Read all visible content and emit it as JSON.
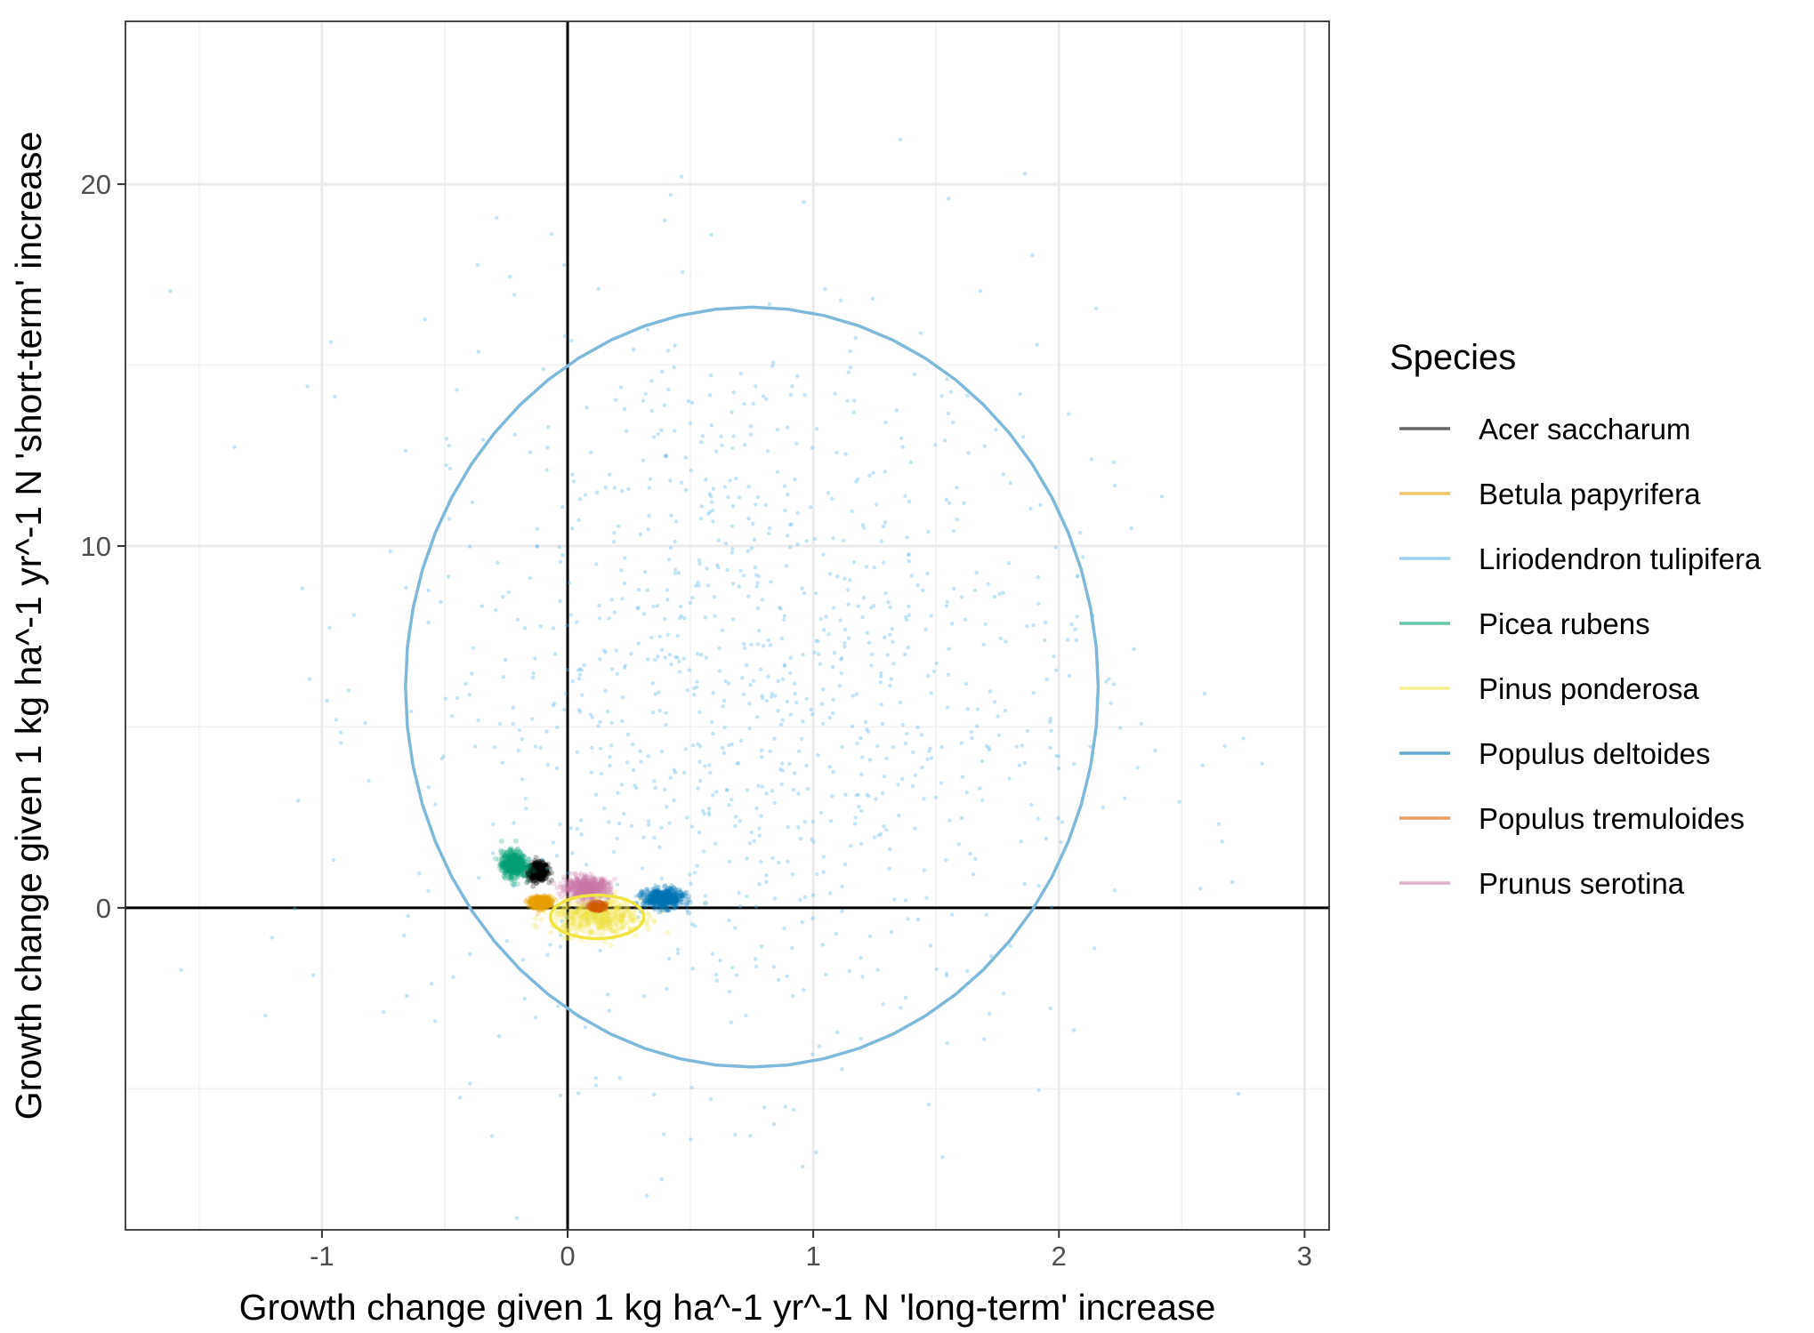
{
  "chart_data": {
    "type": "scatter",
    "xlabel": "Growth change given 1 kg ha^-1 yr^-1 N 'long-term' increase",
    "ylabel": "Growth change given 1 kg ha^-1 yr^-1 N 'short-term' increase",
    "xlim": [
      -1.8,
      3.1
    ],
    "ylim": [
      -8.9,
      24.5
    ],
    "x_ticks": [
      {
        "value": -1,
        "label": "-1"
      },
      {
        "value": 0,
        "label": "0"
      },
      {
        "value": 1,
        "label": "1"
      },
      {
        "value": 2,
        "label": "2"
      },
      {
        "value": 3,
        "label": "3"
      }
    ],
    "y_ticks": [
      {
        "value": 0,
        "label": "0"
      },
      {
        "value": 10,
        "label": "10"
      },
      {
        "value": 20,
        "label": "20"
      }
    ],
    "x_minor_breaks": [
      -1.5,
      -0.5,
      0.5,
      1.5,
      2.5
    ],
    "y_minor_breaks": [
      -5,
      5,
      15
    ],
    "reference_lines": {
      "x": 0,
      "y": 0
    },
    "grid": true,
    "legend": {
      "title": "Species",
      "position": "right",
      "entries": [
        {
          "label": "Acer saccharum",
          "color": "#000000"
        },
        {
          "label": "Betula papyrifera",
          "color": "#E69F00"
        },
        {
          "label": "Liriodendron tulipifera",
          "color": "#56B4E9"
        },
        {
          "label": "Picea rubens",
          "color": "#009E73"
        },
        {
          "label": "Pinus ponderosa",
          "color": "#F0E442"
        },
        {
          "label": "Populus deltoides",
          "color": "#0072B2"
        },
        {
          "label": "Populus tremuloides",
          "color": "#D55E00"
        },
        {
          "label": "Prunus serotina",
          "color": "#CC79A7"
        }
      ]
    },
    "series": [
      {
        "name": "Acer saccharum",
        "color": "#000000",
        "center": [
          -0.12,
          1.0
        ],
        "spread": [
          0.02,
          0.12
        ],
        "ellipse": null
      },
      {
        "name": "Betula papyrifera",
        "color": "#E69F00",
        "center": [
          -0.11,
          0.15
        ],
        "spread": [
          0.02,
          0.08
        ],
        "ellipse": null
      },
      {
        "name": "Liriodendron tulipifera",
        "color": "#56B4E9",
        "center": [
          0.75,
          6.1
        ],
        "spread": [
          0.7,
          5.2
        ],
        "ellipse": {
          "cx": 0.75,
          "cy": 6.1,
          "rx": 1.41,
          "ry": 10.5
        }
      },
      {
        "name": "Picea rubens",
        "color": "#009E73",
        "center": [
          -0.22,
          1.2
        ],
        "spread": [
          0.025,
          0.18
        ],
        "ellipse": null
      },
      {
        "name": "Pinus ponderosa",
        "color": "#F0E442",
        "center": [
          0.12,
          -0.25
        ],
        "spread": [
          0.09,
          0.25
        ],
        "ellipse": {
          "cx": 0.12,
          "cy": -0.25,
          "rx": 0.19,
          "ry": 0.6
        }
      },
      {
        "name": "Populus deltoides",
        "color": "#0072B2",
        "center": [
          0.39,
          0.25
        ],
        "spread": [
          0.04,
          0.13
        ],
        "ellipse": null
      },
      {
        "name": "Populus tremuloides",
        "color": "#D55E00",
        "center": [
          0.12,
          0.05
        ],
        "spread": [
          0.015,
          0.05
        ],
        "ellipse": null
      },
      {
        "name": "Prunus serotina",
        "color": "#CC79A7",
        "center": [
          0.08,
          0.55
        ],
        "spread": [
          0.045,
          0.14
        ],
        "ellipse": null
      }
    ]
  }
}
